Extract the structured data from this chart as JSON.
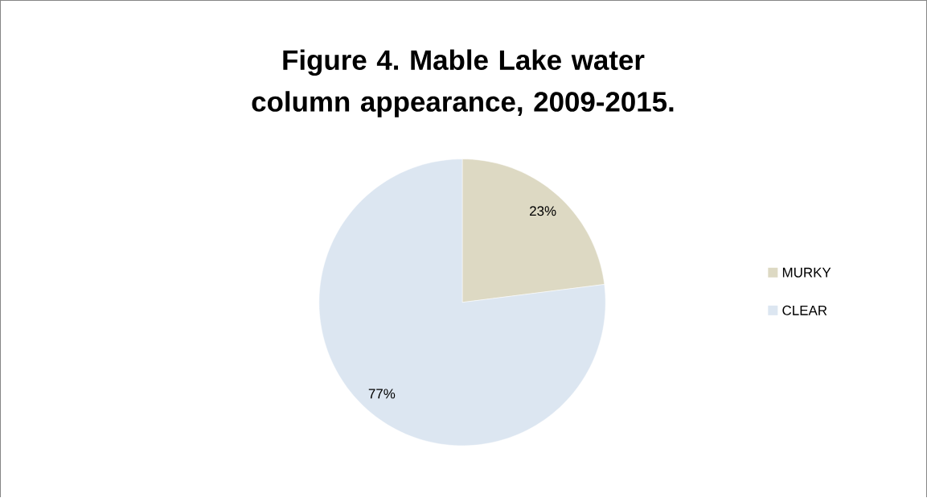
{
  "chart_data": {
    "type": "pie",
    "title": "Figure 4. Mable Lake water column appearance, 2009-2015.",
    "categories": [
      "MURKY",
      "CLEAR"
    ],
    "values": [
      23,
      77
    ],
    "colors": [
      "#ddd9c3",
      "#dce6f1"
    ],
    "value_labels": [
      "23%",
      "77%"
    ],
    "legend": "right"
  }
}
